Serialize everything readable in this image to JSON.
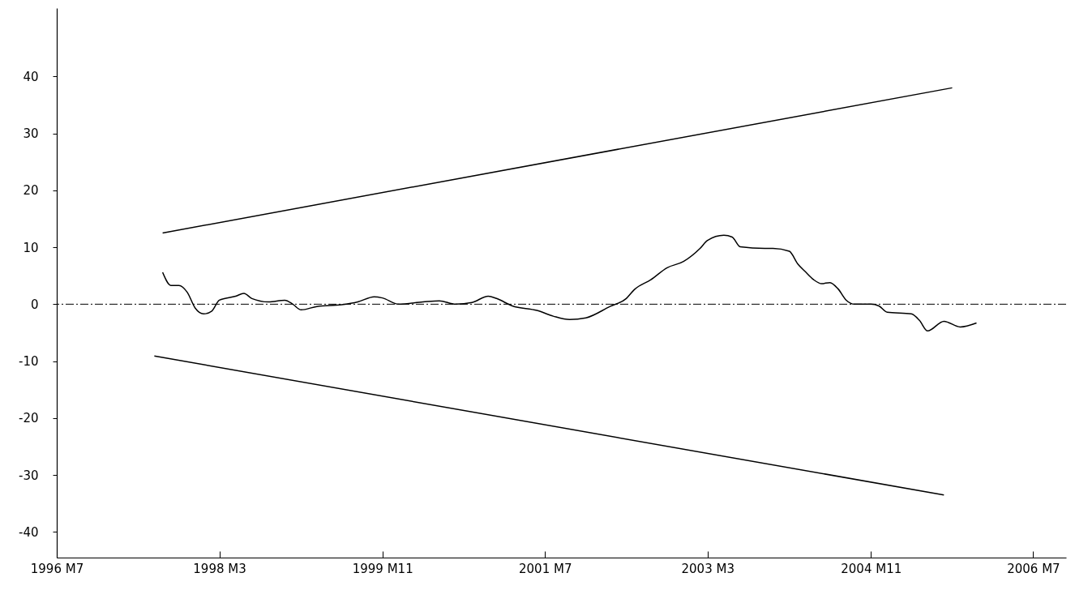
{
  "chart_data": {
    "type": "line",
    "xlim": [
      "1996-07",
      "2006-11"
    ],
    "ylim": [
      -44.5,
      52
    ],
    "xticks": [
      {
        "value": "1996-07",
        "label": "1996 M7"
      },
      {
        "value": "1998-03",
        "label": "1998 M3"
      },
      {
        "value": "1999-11",
        "label": "1999 M11"
      },
      {
        "value": "2001-07",
        "label": "2001 M7"
      },
      {
        "value": "2003-03",
        "label": "2003 M3"
      },
      {
        "value": "2004-11",
        "label": "2004 M11"
      },
      {
        "value": "2006-07",
        "label": "2006 M7"
      }
    ],
    "yticks": [
      -40,
      -30,
      -20,
      -10,
      0,
      10,
      20,
      30,
      40
    ],
    "grid": false,
    "line_style": "solid",
    "marker": "none",
    "series": [
      {
        "color": "#000000",
        "x": [
          "1997-08",
          "1997-09",
          "1997-10",
          "1997-11",
          "1997-12",
          "1998-01",
          "1998-02",
          "1998-03",
          "1998-05",
          "1998-06",
          "1998-07",
          "1998-09",
          "1998-11",
          "1998-12",
          "1999-01",
          "1999-03",
          "1999-06",
          "1999-08",
          "1999-10",
          "1999-11",
          "2000-01",
          "2000-04",
          "2000-06",
          "2000-08",
          "2000-10",
          "2000-12",
          "2001-01",
          "2001-03",
          "2001-06",
          "2001-08",
          "2001-10",
          "2001-12",
          "2002-03",
          "2002-05",
          "2002-06",
          "2002-08",
          "2002-10",
          "2002-12",
          "2003-02",
          "2003-03",
          "2003-05",
          "2003-06",
          "2003-07",
          "2003-10",
          "2003-11",
          "2004-01",
          "2004-02",
          "2004-03",
          "2004-04",
          "2004-05",
          "2004-06",
          "2004-07",
          "2004-08",
          "2004-09",
          "2004-11",
          "2004-12",
          "2005-01",
          "2005-04",
          "2005-05",
          "2005-06",
          "2005-08",
          "2005-10",
          "2005-12"
        ],
        "values": [
          5.6,
          3.3,
          3.3,
          2.1,
          -0.7,
          -1.7,
          -1.2,
          0.7,
          1.4,
          1.9,
          1.0,
          0.4,
          0.7,
          0,
          -1.0,
          -0.4,
          -0.1,
          0.4,
          1.3,
          1.1,
          0,
          0.4,
          0.6,
          0,
          0.3,
          1.4,
          1.0,
          -0.3,
          -1.1,
          -2.1,
          -2.7,
          -2.4,
          -0.4,
          1.0,
          2.6,
          4.3,
          6.4,
          7.5,
          9.8,
          11.2,
          12.1,
          11.8,
          10.1,
          9.8,
          9.8,
          9.3,
          7.1,
          5.7,
          4.3,
          3.6,
          3.8,
          2.7,
          0.7,
          0,
          0,
          -0.3,
          -1.4,
          -1.7,
          -2.8,
          -4.7,
          -3.0,
          -4.0,
          -3.3
        ]
      },
      {
        "color": "#000000",
        "x": [
          "1997-08",
          "2005-09"
        ],
        "values": [
          12.5,
          38.0
        ]
      },
      {
        "color": "#000000",
        "x": [
          "1997-07",
          "2005-08"
        ],
        "values": [
          -9.1,
          -33.5
        ]
      }
    ],
    "ref_lines": [
      {
        "axis": "y",
        "value": 0,
        "color": "#000000",
        "line_style": "dashdot"
      }
    ]
  }
}
